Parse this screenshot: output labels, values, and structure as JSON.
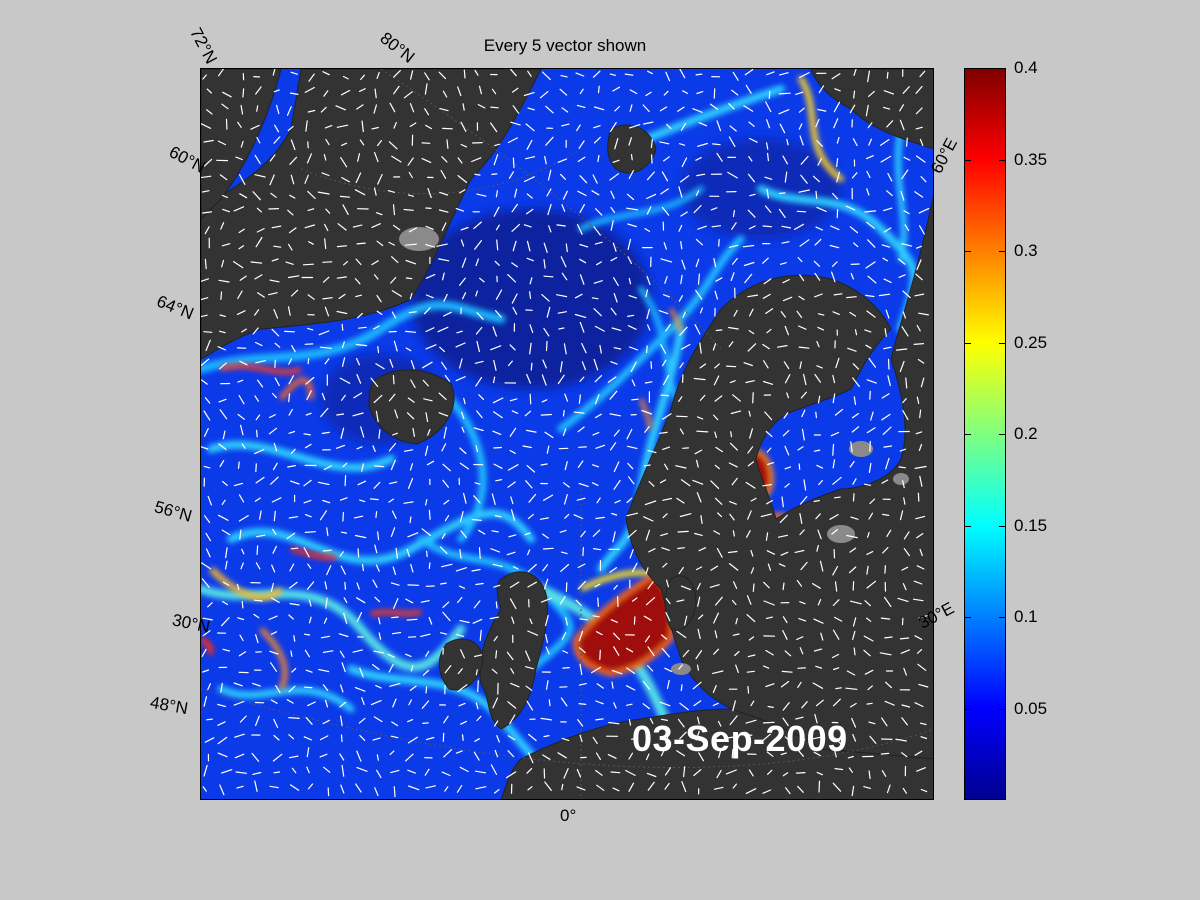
{
  "figure": {
    "title": "Every 5 vector shown",
    "date": "03-Sep-2009"
  },
  "grid_labels": {
    "lat_72": "72°N",
    "lat_80": "80°N",
    "lat_60": "60°N",
    "lat_64": "64°N",
    "lat_56": "56°N",
    "lat_30": "30°N",
    "lat_48": "48°N",
    "lon_0": "0°",
    "lon_30e": "30°E",
    "lon_60e": "60°E"
  },
  "colorbar": {
    "min": 0,
    "max": 0.4,
    "ticks": [
      "0.4",
      "0.35",
      "0.3",
      "0.25",
      "0.2",
      "0.15",
      "0.1",
      "0.05"
    ],
    "colormap": "jet"
  },
  "colors": {
    "background": "#c8c8c8",
    "land": "#333333",
    "ice": "#8a8a8a",
    "ocean_low": "#0a2ee0",
    "vectors": "#ffffff"
  }
}
